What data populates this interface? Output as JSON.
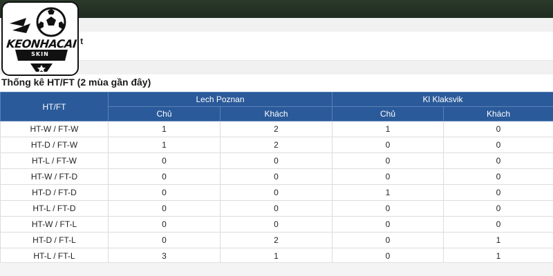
{
  "logo": {
    "brand": "KEONHACAI",
    "sub": "SKIN"
  },
  "header": {
    "partial_text": "t"
  },
  "section": {
    "title": "Thống kê HT/FT (2 mùa gần đây)"
  },
  "table": {
    "corner_label": "HT/FT",
    "teams": [
      "Lech Poznan",
      "Kl Klaksvik"
    ],
    "subheaders": [
      "Chủ",
      "Khách",
      "Chủ",
      "Khách"
    ],
    "rows": [
      {
        "label": "HT-W / FT-W",
        "values": [
          "1",
          "2",
          "1",
          "0"
        ]
      },
      {
        "label": "HT-D / FT-W",
        "values": [
          "1",
          "2",
          "0",
          "0"
        ]
      },
      {
        "label": "HT-L / FT-W",
        "values": [
          "0",
          "0",
          "0",
          "0"
        ]
      },
      {
        "label": "HT-W / FT-D",
        "values": [
          "0",
          "0",
          "0",
          "0"
        ]
      },
      {
        "label": "HT-D / FT-D",
        "values": [
          "0",
          "0",
          "1",
          "0"
        ]
      },
      {
        "label": "HT-L / FT-D",
        "values": [
          "0",
          "0",
          "0",
          "0"
        ]
      },
      {
        "label": "HT-W / FT-L",
        "values": [
          "0",
          "0",
          "0",
          "0"
        ]
      },
      {
        "label": "HT-D / FT-L",
        "values": [
          "0",
          "2",
          "0",
          "1"
        ]
      },
      {
        "label": "HT-L / FT-L",
        "values": [
          "3",
          "1",
          "0",
          "1"
        ]
      }
    ]
  },
  "colors": {
    "header_bg": "#2a5a9a",
    "topbar": "#1f2b1f"
  }
}
